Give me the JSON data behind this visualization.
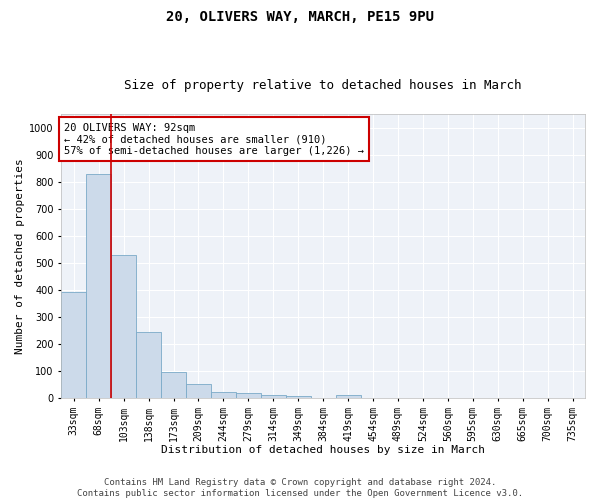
{
  "title1": "20, OLIVERS WAY, MARCH, PE15 9PU",
  "title2": "Size of property relative to detached houses in March",
  "xlabel": "Distribution of detached houses by size in March",
  "ylabel": "Number of detached properties",
  "categories": [
    "33sqm",
    "68sqm",
    "103sqm",
    "138sqm",
    "173sqm",
    "209sqm",
    "244sqm",
    "279sqm",
    "314sqm",
    "349sqm",
    "384sqm",
    "419sqm",
    "454sqm",
    "489sqm",
    "524sqm",
    "560sqm",
    "595sqm",
    "630sqm",
    "665sqm",
    "700sqm",
    "735sqm"
  ],
  "values": [
    390,
    828,
    530,
    243,
    96,
    51,
    22,
    18,
    11,
    8,
    0,
    10,
    0,
    0,
    0,
    0,
    0,
    0,
    0,
    0,
    0
  ],
  "bar_color": "#ccdaea",
  "bar_edge_color": "#7aaac8",
  "background_color": "#eef2f8",
  "grid_color": "#ffffff",
  "ylim": [
    0,
    1050
  ],
  "yticks": [
    0,
    100,
    200,
    300,
    400,
    500,
    600,
    700,
    800,
    900,
    1000
  ],
  "property_line_color": "#cc0000",
  "annotation_text": "20 OLIVERS WAY: 92sqm\n← 42% of detached houses are smaller (910)\n57% of semi-detached houses are larger (1,226) →",
  "annotation_box_color": "#cc0000",
  "footer_line1": "Contains HM Land Registry data © Crown copyright and database right 2024.",
  "footer_line2": "Contains public sector information licensed under the Open Government Licence v3.0.",
  "title1_fontsize": 10,
  "title2_fontsize": 9,
  "xlabel_fontsize": 8,
  "ylabel_fontsize": 8,
  "tick_fontsize": 7,
  "annotation_fontsize": 7.5,
  "footer_fontsize": 6.5
}
